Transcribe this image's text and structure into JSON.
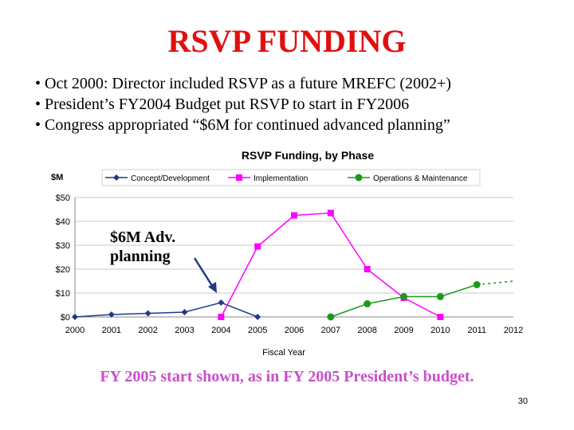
{
  "slide": {
    "title": "RSVP FUNDING",
    "bullets": [
      "• Oct 2000: Director included RSVP as a future MREFC (2002+)",
      "• President’s FY2004 Budget put RSVP to start in FY2006",
      "• Congress appropriated “$6M for continued advanced planning”"
    ],
    "footnote": "FY 2005 start shown, as in FY 2005 President’s budget.",
    "page_number": "30",
    "annotation": {
      "line1": "$6M Adv.",
      "line2": "planning"
    }
  },
  "colors": {
    "title": "#e01010",
    "footnote": "#c850c8",
    "concept": "#1f3b86",
    "implementation": "#ff00ff",
    "operations": "#1a9a1a",
    "grid": "#c8c8c8"
  },
  "chart_data": {
    "type": "line",
    "title": "RSVP Funding, by Phase",
    "ylabel": "$M",
    "xlabel": "Fiscal Year",
    "ylim": [
      0,
      50
    ],
    "xlim": [
      2000,
      2012
    ],
    "yticks": [
      0,
      10,
      20,
      30,
      40,
      50
    ],
    "ytick_labels": [
      "$0",
      "$10",
      "$20",
      "$30",
      "$40",
      "$50"
    ],
    "xticks": [
      "2000",
      "2001",
      "2002",
      "2003",
      "2004",
      "2005",
      "2006",
      "2007",
      "2008",
      "2009",
      "2010",
      "2011",
      "2012"
    ],
    "grid": true,
    "legend_position": "top",
    "series": [
      {
        "name": "Concept/Development",
        "color": "#1f3b86",
        "marker": "diamond",
        "x": [
          2000,
          2001,
          2002,
          2003,
          2004,
          2005
        ],
        "y": [
          0,
          1,
          1.5,
          2,
          6,
          0
        ]
      },
      {
        "name": "Implementation",
        "color": "#ff00ff",
        "marker": "square",
        "x": [
          2004,
          2005,
          2006,
          2007,
          2008,
          2009,
          2010
        ],
        "y": [
          0,
          29.5,
          42.5,
          43.5,
          20,
          8,
          0
        ]
      },
      {
        "name": "Operations & Maintenance",
        "color": "#1a9a1a",
        "marker": "circle",
        "x": [
          2007,
          2008,
          2009,
          2010,
          2011
        ],
        "y": [
          0,
          5.5,
          8.5,
          8.5,
          13.5
        ],
        "projection": {
          "x": [
            2011,
            2012
          ],
          "y": [
            13.5,
            15
          ]
        }
      }
    ]
  }
}
